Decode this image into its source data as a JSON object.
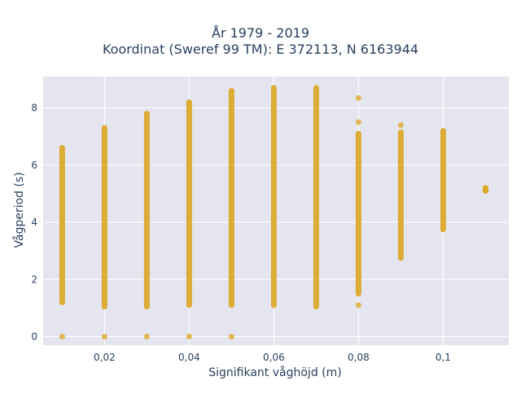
{
  "chart_data": {
    "type": "scatter",
    "title_line1": "År 1979 - 2019",
    "title_line2": "Koordinat (Sweref 99 TM): E 372113, N 6163944",
    "xlabel": "Signifikant våghöjd (m)",
    "ylabel": "Vågperiod (s)",
    "xlim": [
      0.0055,
      0.1155
    ],
    "ylim": [
      -0.3,
      9.1
    ],
    "x_ticks": [
      {
        "value": 0.02,
        "label": "0,02"
      },
      {
        "value": 0.04,
        "label": "0,04"
      },
      {
        "value": 0.06,
        "label": "0,06"
      },
      {
        "value": 0.08,
        "label": "0,08"
      },
      {
        "value": 0.1,
        "label": "0,1"
      }
    ],
    "y_ticks": [
      {
        "value": 0,
        "label": "0"
      },
      {
        "value": 2,
        "label": "2"
      },
      {
        "value": 4,
        "label": "4"
      },
      {
        "value": 6,
        "label": "6"
      },
      {
        "value": 8,
        "label": "8"
      }
    ],
    "grid": true,
    "background_color": "#e5e5ef",
    "marker_color": "#daa520",
    "series": [
      {
        "segments": [
          {
            "x": 0.01,
            "y_min": 1.2,
            "y_max": 6.6
          },
          {
            "x": 0.02,
            "y_min": 1.05,
            "y_max": 7.3
          },
          {
            "x": 0.03,
            "y_min": 1.05,
            "y_max": 7.8
          },
          {
            "x": 0.04,
            "y_min": 1.1,
            "y_max": 8.2
          },
          {
            "x": 0.05,
            "y_min": 1.1,
            "y_max": 8.6
          },
          {
            "x": 0.06,
            "y_min": 1.1,
            "y_max": 8.7
          },
          {
            "x": 0.07,
            "y_min": 1.05,
            "y_max": 8.7
          },
          {
            "x": 0.08,
            "y_min": 1.5,
            "y_max": 7.1
          },
          {
            "x": 0.09,
            "y_min": 2.75,
            "y_max": 7.15
          },
          {
            "x": 0.1,
            "y_min": 3.75,
            "y_max": 7.2
          },
          {
            "x": 0.11,
            "y_min": 5.1,
            "y_max": 5.2
          }
        ],
        "points": [
          {
            "x": 0.01,
            "y": 0
          },
          {
            "x": 0.02,
            "y": 0
          },
          {
            "x": 0.03,
            "y": 0
          },
          {
            "x": 0.04,
            "y": 0
          },
          {
            "x": 0.05,
            "y": 0
          },
          {
            "x": 0.08,
            "y": 8.35
          },
          {
            "x": 0.08,
            "y": 7.5
          },
          {
            "x": 0.08,
            "y": 1.1
          },
          {
            "x": 0.09,
            "y": 7.4
          },
          {
            "x": 0.11,
            "y": 5.1
          },
          {
            "x": 0.11,
            "y": 5.2
          }
        ]
      }
    ]
  }
}
